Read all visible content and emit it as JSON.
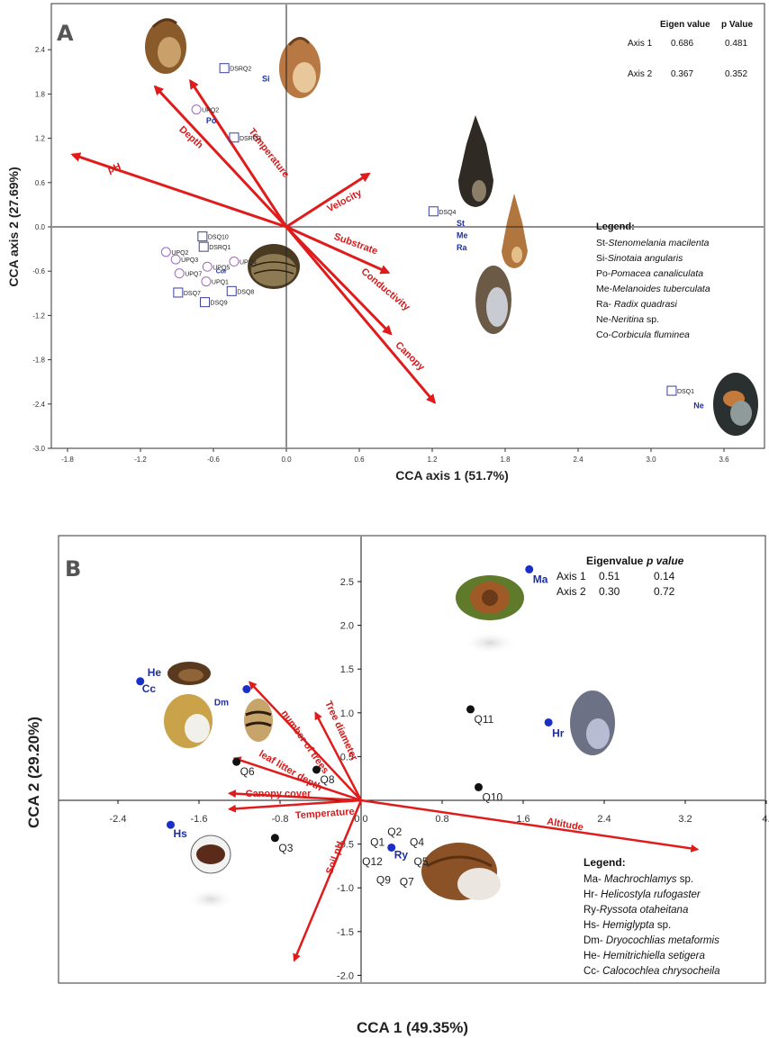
{
  "chart_data": [
    {
      "panel": "A",
      "type": "scatter",
      "title": "",
      "xlabel": "CCA axis 1 (51.7%)",
      "ylabel": "CCA axis 2 (27.69%)",
      "xlim": [
        -2.0,
        4.0
      ],
      "ylim": [
        -3.0,
        2.8
      ],
      "xticks": [
        "-1.8",
        "-1.2",
        "-0.6",
        "0.0",
        "0.6",
        "1.2",
        "1.8",
        "2.4",
        "3.0",
        "3.6"
      ],
      "yticks": [
        "2.4",
        "1.8",
        "1.2",
        "0.6",
        "0.0",
        "-0.6",
        "-1.2",
        "-1.8",
        "-2.4",
        "-3.0"
      ],
      "grid": false,
      "stats": {
        "headers": [
          "Eigen value",
          "p Value"
        ],
        "rows": [
          {
            "axis": "Axis 1",
            "eigen": "0.686",
            "p": "0.481"
          },
          {
            "axis": "Axis 2",
            "eigen": "0.367",
            "p": "0.352"
          }
        ]
      },
      "vectors": [
        {
          "name": "pH",
          "x": -1.76,
          "y": 0.98
        },
        {
          "name": "Depth",
          "x": -1.08,
          "y": 1.9
        },
        {
          "name": "Temperature",
          "x": -0.79,
          "y": 1.98
        },
        {
          "name": "Velocity",
          "x": 0.68,
          "y": 0.72
        },
        {
          "name": "Substrate",
          "x": 0.84,
          "y": -0.62
        },
        {
          "name": "Conductivity",
          "x": 0.86,
          "y": -1.45
        },
        {
          "name": "Canopy",
          "x": 1.22,
          "y": -2.38
        }
      ],
      "sites": [
        {
          "name": "DSRQ2",
          "x": -0.51,
          "y": 2.15,
          "shape": "square"
        },
        {
          "name": "UPQ2",
          "x": -0.74,
          "y": 1.59,
          "shape": "circle"
        },
        {
          "name": "DSRQ3",
          "x": -0.43,
          "y": 1.21,
          "shape": "square"
        },
        {
          "name": "DSQ4",
          "x": 1.21,
          "y": 0.21,
          "shape": "square"
        },
        {
          "name": "DSQ10",
          "x": -0.69,
          "y": -0.13,
          "shape": "square"
        },
        {
          "name": "DSRQ1",
          "x": -0.68,
          "y": -0.27,
          "shape": "square"
        },
        {
          "name": "UPQ2",
          "x": -0.99,
          "y": -0.34,
          "shape": "circle"
        },
        {
          "name": "UPQ3",
          "x": -0.91,
          "y": -0.44,
          "shape": "circle"
        },
        {
          "name": "UPQ4",
          "x": -0.43,
          "y": -0.47,
          "shape": "circle"
        },
        {
          "name": "UPQ5",
          "x": -0.65,
          "y": -0.54,
          "shape": "circle"
        },
        {
          "name": "UPQ7",
          "x": -0.88,
          "y": -0.63,
          "shape": "circle"
        },
        {
          "name": "UPQ1",
          "x": -0.66,
          "y": -0.74,
          "shape": "circle"
        },
        {
          "name": "DSQ7",
          "x": -0.89,
          "y": -0.89,
          "shape": "square"
        },
        {
          "name": "DSQ8",
          "x": -0.45,
          "y": -0.87,
          "shape": "square"
        },
        {
          "name": "DSQ9",
          "x": -0.67,
          "y": -1.02,
          "shape": "square"
        },
        {
          "name": "DSQ1",
          "x": 3.17,
          "y": -2.22,
          "shape": "square"
        }
      ],
      "species": [
        {
          "code": "Si",
          "x": -0.2,
          "y": 1.97
        },
        {
          "code": "Po",
          "x": -0.66,
          "y": 1.4
        },
        {
          "code": "Cor",
          "x": -0.58,
          "y": -0.63
        },
        {
          "code": "St",
          "x": 1.4,
          "y": 0.01
        },
        {
          "code": "Me",
          "x": 1.4,
          "y": -0.15
        },
        {
          "code": "Ra",
          "x": 1.4,
          "y": -0.32
        },
        {
          "code": "Ne",
          "x": 3.35,
          "y": -2.46
        }
      ],
      "legend": {
        "title": "Legend:",
        "items": [
          {
            "code": "St-",
            "name": "Stenomelania macilenta"
          },
          {
            "code": "Si-",
            "name": "Sinotaia angularis"
          },
          {
            "code": "Po-",
            "name": "Pomacea canaliculata"
          },
          {
            "code": "Me-",
            "name": "Melanoides tuberculata"
          },
          {
            "code": "Ra- ",
            "name": "Radix quadrasi"
          },
          {
            "code": "Ne-",
            "name": "Neritina",
            "suffix": " sp."
          },
          {
            "code": "Co-",
            "name": "Corbicula fluminea"
          }
        ]
      }
    },
    {
      "panel": "B",
      "type": "scatter",
      "title": "",
      "xlabel": "CCA 1 (49.35%)",
      "ylabel": "CCA 2 (29.20%)",
      "xlim": [
        -3.2,
        4.05
      ],
      "ylim": [
        -2.02,
        3.08
      ],
      "xticks": [
        "-2.4",
        "-1.6",
        "-0.8",
        "0.0",
        "0.8",
        "1.6",
        "2.4",
        "3.2",
        "4."
      ],
      "yticks": [
        "2.5",
        "2.0",
        "1.5",
        "1.0",
        "0.5",
        "-0.5",
        "-1.0",
        "-1.5",
        "-2.0"
      ],
      "grid": false,
      "stats": {
        "headers": [
          "Eigenvalue",
          "p value"
        ],
        "rows": [
          {
            "axis": "Axis 1",
            "eigen": "0.51",
            "p": "0.14"
          },
          {
            "axis": "Axis 2",
            "eigen": "0.30",
            "p": "0.72"
          }
        ]
      },
      "vectors": [
        {
          "name": "number of trees",
          "x": -1.1,
          "y": 1.35
        },
        {
          "name": "Tree diameter",
          "x": -0.45,
          "y": 1.0
        },
        {
          "name": "leaf litter depth",
          "x": -1.25,
          "y": 0.48
        },
        {
          "name": "Canopy cover",
          "x": -1.3,
          "y": 0.08
        },
        {
          "name": "Temperature",
          "x": -1.3,
          "y": -0.1
        },
        {
          "name": "Altitude",
          "x": 3.32,
          "y": -0.56
        },
        {
          "name": "Soil pH",
          "x": -0.66,
          "y": -1.83
        }
      ],
      "sites": [
        {
          "name": "Q11",
          "x": 1.08,
          "y": 1.04
        },
        {
          "name": "Q10",
          "x": 1.16,
          "y": 0.15
        },
        {
          "name": "Q6",
          "x": -1.23,
          "y": 0.44
        },
        {
          "name": "Q8",
          "x": -0.44,
          "y": 0.35
        },
        {
          "name": "Q3",
          "x": -0.85,
          "y": -0.43
        }
      ],
      "site_labels": [
        {
          "name": "Q1",
          "x": 0.09,
          "y": -0.52
        },
        {
          "name": "Q2",
          "x": 0.26,
          "y": -0.4
        },
        {
          "name": "Q4",
          "x": 0.48,
          "y": -0.52
        },
        {
          "name": "Q12",
          "x": 0.01,
          "y": -0.74
        },
        {
          "name": "Q5",
          "x": 0.52,
          "y": -0.74
        },
        {
          "name": "Q9",
          "x": 0.15,
          "y": -0.95
        },
        {
          "name": "Q7",
          "x": 0.38,
          "y": -0.97
        }
      ],
      "species": [
        {
          "code": "Ma",
          "x": 1.66,
          "y": 2.64
        },
        {
          "code": "Hr",
          "x": 1.85,
          "y": 0.89
        },
        {
          "code": "He",
          "x": -2.18,
          "y": 1.36
        },
        {
          "code": "Cc",
          "x": -2.18,
          "y": 1.36
        },
        {
          "code": "Dm",
          "x": -1.13,
          "y": 1.27
        },
        {
          "code": "Ry",
          "x": 0.3,
          "y": -0.54
        },
        {
          "code": "Hs",
          "x": -1.88,
          "y": -0.28
        }
      ],
      "legend": {
        "title": "Legend:",
        "items": [
          {
            "code": "Ma- ",
            "name": "Machrochlamys",
            "suffix": " sp."
          },
          {
            "code": "Hr- ",
            "name": "Helicostyla rufogaster"
          },
          {
            "code": "Ry-",
            "name": "Ryssota otaheitana"
          },
          {
            "code": "Hs- ",
            "name": "Hemiglypta",
            "suffix": " sp."
          },
          {
            "code": "Dm- ",
            "name": "Dryocochlias metaformis"
          },
          {
            "code": "He- ",
            "name": "Hemitrichiella setigera"
          },
          {
            "code": "Cc- ",
            "name": "Calocochlea chrysocheila"
          }
        ]
      }
    }
  ],
  "colors": {
    "vector": "#e01b1b",
    "species": "#1f2f9f",
    "site_circle": "#a26ab8",
    "site_square": "#3a3f9a",
    "site_dot": "#111111",
    "species_dot": "#1a2fc8"
  }
}
